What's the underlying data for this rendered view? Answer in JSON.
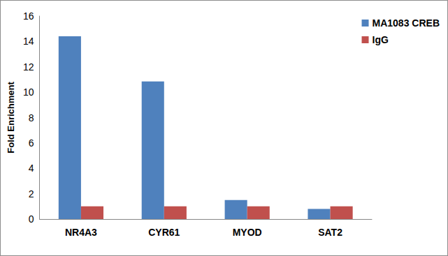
{
  "chart_data": {
    "type": "bar",
    "y_label": "Fold Enrichment",
    "categories": [
      "NR4A3",
      "CYR61",
      "MYOD",
      "SAT2"
    ],
    "series": [
      {
        "name": "MA1083 CREB",
        "color": "#4f81bd",
        "values": [
          14.4,
          10.85,
          1.5,
          0.8
        ]
      },
      {
        "name": "IgG",
        "color": "#c0504d",
        "values": [
          1.0,
          1.0,
          1.0,
          1.0
        ]
      }
    ],
    "ylim": [
      0,
      16
    ],
    "yticks": [
      0,
      2,
      4,
      6,
      8,
      10,
      12,
      14,
      16
    ],
    "grid": false,
    "legend": "top-right"
  }
}
